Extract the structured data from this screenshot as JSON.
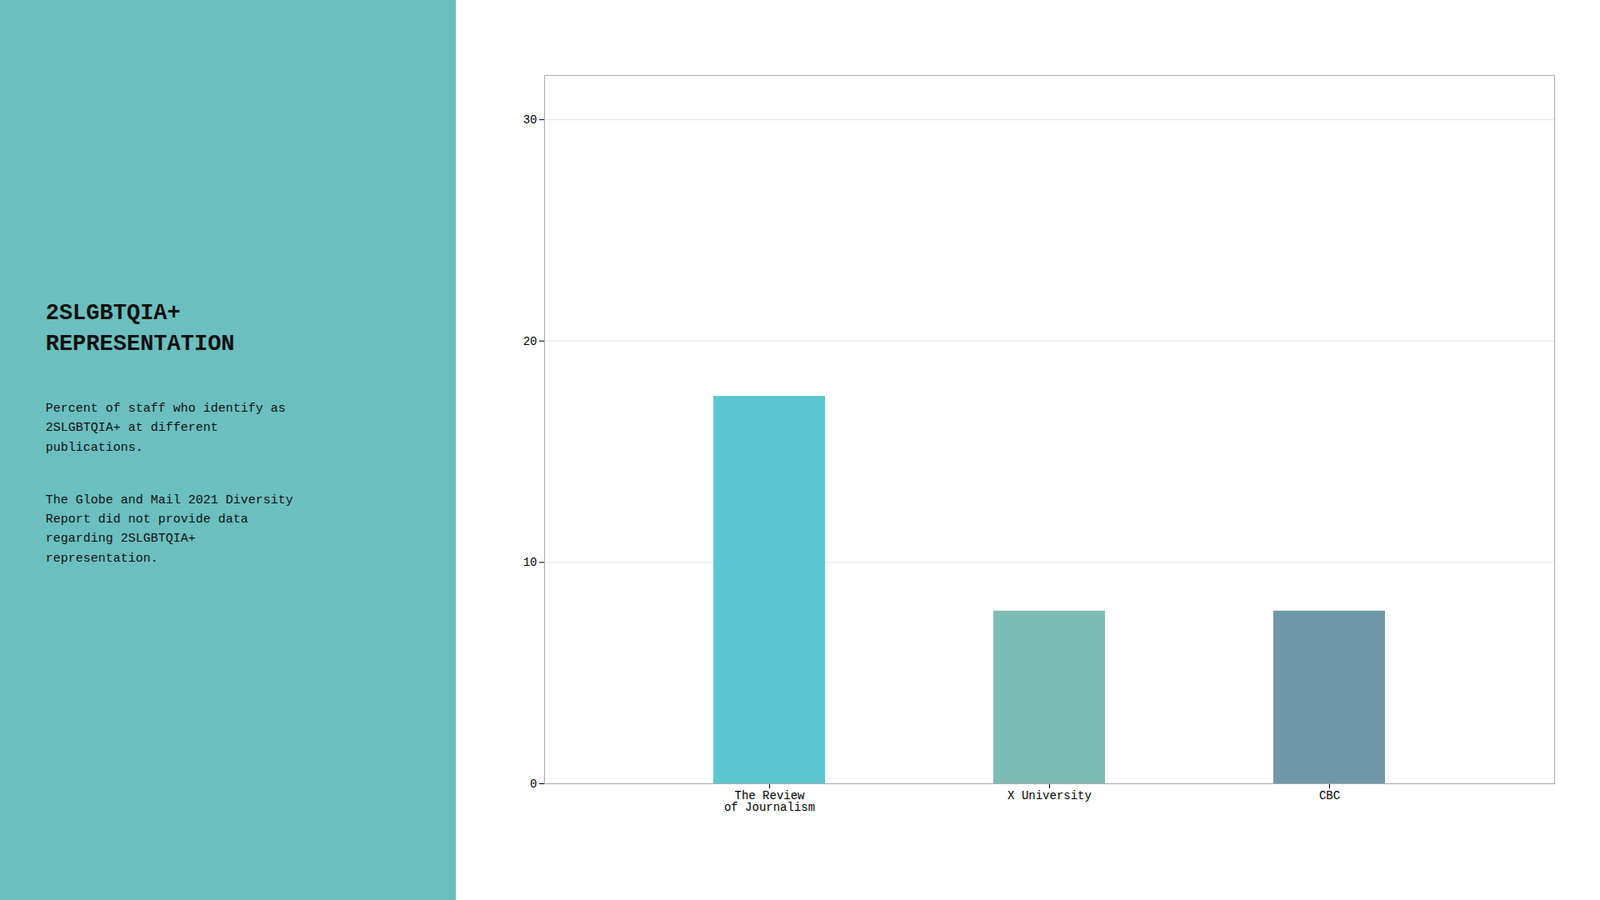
{
  "chart_data": {
    "type": "bar",
    "title": "2SLGBTQIA+\nREPRESENTATION",
    "subtitle": "Percent of staff who identify as\n2SLGBTQIA+ at different\npublications.",
    "annotations": [
      "The Globe and Mail 2021 Diversity\nReport did not provide data\nregarding 2SLGBTQIA+\nrepresentation."
    ],
    "categories": [
      "The Review\nof Journalism",
      "X University",
      "CBC"
    ],
    "values": [
      17.5,
      7.8,
      7.8
    ],
    "colors": [
      "#5BC8D0",
      "#7DBDB5",
      "#7098A8"
    ],
    "ylim": [
      0,
      32
    ],
    "yticks": [
      0,
      10,
      20,
      30
    ],
    "grid": true
  }
}
